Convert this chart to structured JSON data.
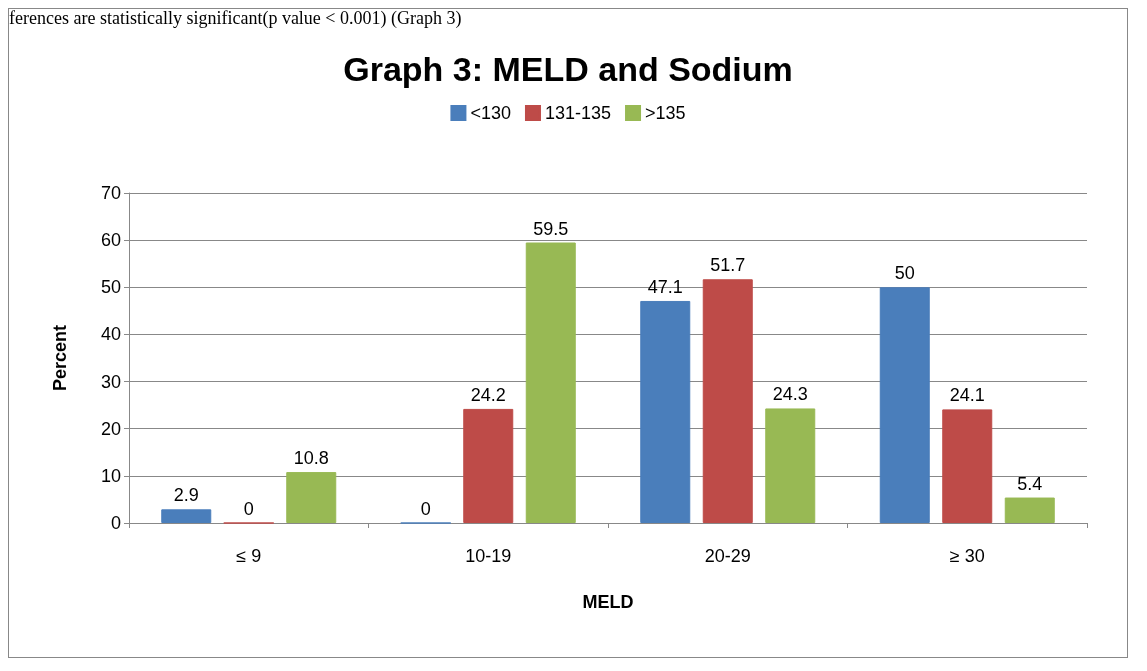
{
  "chart_data": {
    "type": "bar",
    "title": "Graph 3: MELD and Sodium",
    "xlabel": "MELD",
    "ylabel": "Percent",
    "annotations": [
      "ferences are statistically significant(p value < 0.001) (Graph 3)"
    ],
    "categories": [
      "≤ 9",
      "10-19",
      "20-29",
      "≥ 30"
    ],
    "series": [
      {
        "name": "<130",
        "color": "#4a7ebb",
        "values": [
          2.9,
          0,
          47.1,
          50
        ]
      },
      {
        "name": "131-135",
        "color": "#be4b48",
        "values": [
          0,
          24.2,
          51.7,
          24.1
        ]
      },
      {
        "name": ">135",
        "color": "#98b954",
        "values": [
          10.8,
          59.5,
          24.3,
          5.4
        ]
      }
    ],
    "ylim": [
      0,
      70
    ],
    "yticks": [
      0,
      10,
      20,
      30,
      40,
      50,
      60,
      70
    ],
    "grid": "y",
    "legend": "top",
    "data_labels": true
  }
}
